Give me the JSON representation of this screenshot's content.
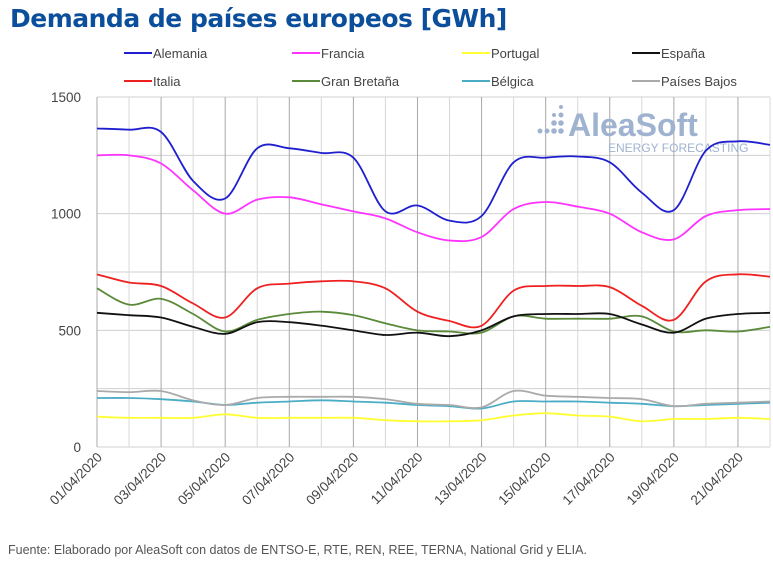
{
  "title": "Demanda de países europeos [GWh]",
  "source": "Fuente: Elaborado por AleaSoft con datos de ENTSO-E, RTE, REN, REE, TERNA, National Grid y ELIA.",
  "logo": {
    "name": "AleaSoft",
    "tagline": "ENERGY FORECASTING",
    "color": "#9fb3d1"
  },
  "chart_data": {
    "type": "line",
    "title": "Demanda de países europeos [GWh]",
    "xlabel": "",
    "ylabel": "",
    "ylim": [
      0,
      1500
    ],
    "yticks": [
      0,
      500,
      1000,
      1500
    ],
    "grid": true,
    "legend_position": "top",
    "x": [
      "01/04/2020",
      "02/04/2020",
      "03/04/2020",
      "04/04/2020",
      "05/04/2020",
      "06/04/2020",
      "07/04/2020",
      "08/04/2020",
      "09/04/2020",
      "10/04/2020",
      "11/04/2020",
      "12/04/2020",
      "13/04/2020",
      "14/04/2020",
      "15/04/2020",
      "16/04/2020",
      "17/04/2020",
      "18/04/2020",
      "19/04/2020",
      "20/04/2020",
      "21/04/2020",
      "22/04/2020"
    ],
    "xtick_labels": [
      "01/04/2020",
      "03/04/2020",
      "05/04/2020",
      "07/04/2020",
      "09/04/2020",
      "11/04/2020",
      "13/04/2020",
      "15/04/2020",
      "17/04/2020",
      "19/04/2020",
      "21/04/2020"
    ],
    "series": [
      {
        "name": "Alemania",
        "color": "#1f1fd0",
        "values": [
          1365,
          1360,
          1350,
          1140,
          1065,
          1280,
          1280,
          1260,
          1240,
          1010,
          1035,
          970,
          990,
          1220,
          1240,
          1245,
          1220,
          1090,
          1015,
          1270,
          1310,
          1295
        ]
      },
      {
        "name": "Francia",
        "color": "#ff33ff",
        "values": [
          1250,
          1250,
          1215,
          1100,
          1000,
          1060,
          1070,
          1040,
          1010,
          980,
          920,
          885,
          900,
          1020,
          1050,
          1030,
          1000,
          920,
          890,
          990,
          1015,
          1020
        ]
      },
      {
        "name": "Portugal",
        "color": "#ffff33",
        "values": [
          130,
          125,
          125,
          125,
          140,
          125,
          125,
          125,
          125,
          115,
          110,
          110,
          115,
          135,
          145,
          135,
          130,
          110,
          120,
          120,
          125,
          120
        ]
      },
      {
        "name": "España",
        "color": "#111111",
        "values": [
          575,
          565,
          555,
          515,
          485,
          535,
          535,
          520,
          500,
          480,
          490,
          475,
          500,
          560,
          570,
          570,
          570,
          525,
          490,
          550,
          570,
          575
        ]
      },
      {
        "name": "Italia",
        "color": "#ee2020",
        "values": [
          740,
          705,
          690,
          615,
          555,
          680,
          700,
          710,
          710,
          680,
          580,
          540,
          520,
          670,
          690,
          690,
          685,
          605,
          545,
          710,
          740,
          730
        ]
      },
      {
        "name": "Gran Bretaña",
        "color": "#5a8a3a",
        "values": [
          680,
          610,
          635,
          570,
          495,
          545,
          570,
          580,
          565,
          530,
          500,
          495,
          490,
          560,
          550,
          550,
          550,
          560,
          495,
          500,
          495,
          515
        ]
      },
      {
        "name": "Bélgica",
        "color": "#4bacc6",
        "values": [
          210,
          210,
          205,
          195,
          180,
          190,
          195,
          200,
          195,
          190,
          180,
          175,
          165,
          195,
          195,
          195,
          190,
          185,
          175,
          180,
          185,
          190
        ]
      },
      {
        "name": "Países Bajos",
        "color": "#aaaaaa",
        "values": [
          240,
          235,
          240,
          200,
          180,
          210,
          215,
          215,
          215,
          205,
          185,
          180,
          170,
          240,
          220,
          215,
          210,
          205,
          175,
          185,
          190,
          195
        ]
      }
    ]
  }
}
